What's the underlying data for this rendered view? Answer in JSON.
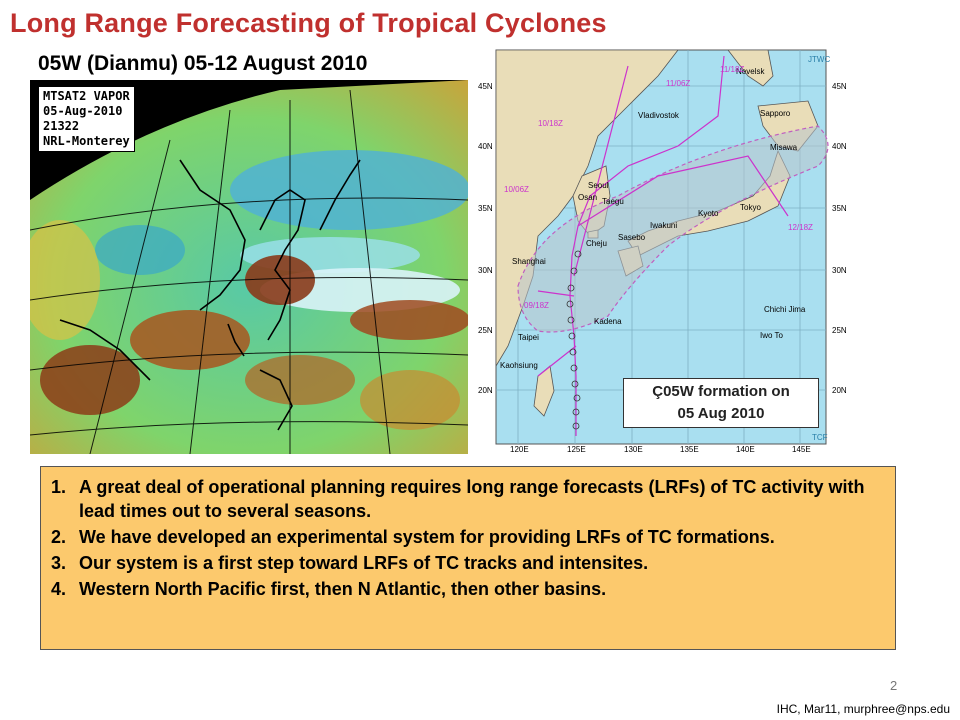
{
  "title": "Long Range Forecasting of Tropical Cyclones",
  "subtitle": "05W (Dianmu) 05-12 August 2010",
  "satellite": {
    "label_lines": [
      "MTSAT2 VAPOR",
      "05-Aug-2010",
      "21322",
      "NRL-Monterey"
    ]
  },
  "map": {
    "corner_top": "JTWC",
    "corner_bottom": "TCF",
    "lat_labels": [
      "45N",
      "40N",
      "35N",
      "30N",
      "25N",
      "20N"
    ],
    "lon_labels": [
      "120E",
      "125E",
      "130E",
      "135E",
      "140E",
      "145E"
    ],
    "places": [
      "Nevelsk",
      "Vladivostok",
      "Sapporo",
      "Misawa",
      "Seoul",
      "Taegu",
      "Osan",
      "Tokyo",
      "Kyoto",
      "Iwakuni",
      "Sasebo",
      "Cheju",
      "Shanghai",
      "Kadena",
      "Chichi Jima",
      "Iwo To",
      "Taipei",
      "Kaohsiung"
    ],
    "times": [
      "11/18Z",
      "11/06Z",
      "10/18Z",
      "10/06Z",
      "09/18Z",
      "12/18Z"
    ],
    "colors": {
      "sea": "#a9dff0",
      "land": "#e9ddb8",
      "track": "#cc33cc",
      "swath": "#a0a8b0"
    }
  },
  "formation_note": {
    "arrow": "Ç",
    "line1": "05W formation on",
    "line2": "05 Aug 2010"
  },
  "notes": [
    {
      "num": "1.",
      "text": "A great deal of operational planning requires long range forecasts (LRFs) of TC activity with lead times out to several seasons."
    },
    {
      "num": "2.",
      "text": "We have developed an experimental system for providing LRFs of TC formations."
    },
    {
      "num": "3.",
      "text": "Our system is a first step toward LRFs of TC tracks and intensites."
    },
    {
      "num": "4.",
      "text": "Western North Pacific first, then N Atlantic, then other basins."
    }
  ],
  "page_number": "2",
  "footer": "IHC, Mar11, murphree@nps.edu"
}
